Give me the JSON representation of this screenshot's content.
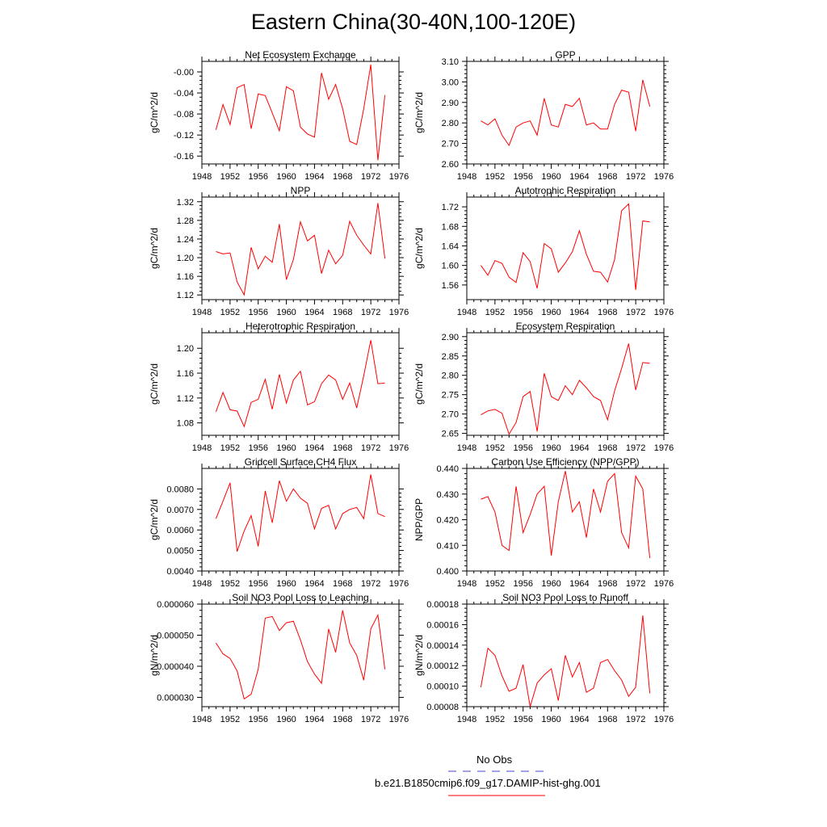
{
  "title": "Eastern China(30-40N,100-120E)",
  "colors": {
    "series": "#ff0000",
    "obs": "#4444cc",
    "axis": "#000000"
  },
  "legend": {
    "obs_label": "No Obs",
    "model_label": "b.e21.B1850cmip6.f09_g17.DAMIP-hist-ghg.001"
  },
  "chart_data": [
    {
      "type": "line",
      "title": "Net Ecosystem Exchange",
      "ylabel": "gC/m^2/d",
      "xlabel": "",
      "xlim": [
        1948,
        1976
      ],
      "xticks": [
        1948,
        1952,
        1956,
        1960,
        1964,
        1968,
        1972,
        1976
      ],
      "ylim": [
        -0.175,
        0.02
      ],
      "yticks": [
        -0.16,
        -0.12,
        -0.08,
        -0.04,
        0.0
      ],
      "yticklabels": [
        "-0.16",
        "-0.12",
        "-0.08",
        "-0.04",
        "-0.00"
      ],
      "x": [
        1950,
        1951,
        1952,
        1953,
        1954,
        1955,
        1956,
        1957,
        1958,
        1959,
        1960,
        1961,
        1962,
        1963,
        1964,
        1965,
        1966,
        1967,
        1968,
        1969,
        1970,
        1971,
        1972,
        1973,
        1974
      ],
      "series": [
        {
          "values": [
            -0.11,
            -0.062,
            -0.1,
            -0.03,
            -0.024,
            -0.108,
            -0.042,
            -0.045,
            -0.078,
            -0.112,
            -0.028,
            -0.036,
            -0.105,
            -0.118,
            -0.124,
            -0.002,
            -0.052,
            -0.024,
            -0.07,
            -0.132,
            -0.138,
            -0.07,
            0.014,
            -0.168,
            -0.044
          ]
        }
      ]
    },
    {
      "type": "line",
      "title": "GPP",
      "ylabel": "gC/m^2/d",
      "xlabel": "",
      "xlim": [
        1948,
        1976
      ],
      "xticks": [
        1948,
        1952,
        1956,
        1960,
        1964,
        1968,
        1972,
        1976
      ],
      "ylim": [
        2.6,
        3.1
      ],
      "yticks": [
        2.6,
        2.7,
        2.8,
        2.9,
        3.0,
        3.1
      ],
      "yticklabels": [
        "2.60",
        "2.70",
        "2.80",
        "2.90",
        "3.00",
        "3.10"
      ],
      "x": [
        1950,
        1951,
        1952,
        1953,
        1954,
        1955,
        1956,
        1957,
        1958,
        1959,
        1960,
        1961,
        1962,
        1963,
        1964,
        1965,
        1966,
        1967,
        1968,
        1969,
        1970,
        1971,
        1972,
        1973,
        1974
      ],
      "series": [
        {
          "values": [
            2.81,
            2.79,
            2.82,
            2.74,
            2.69,
            2.78,
            2.8,
            2.81,
            2.74,
            2.92,
            2.79,
            2.78,
            2.89,
            2.88,
            2.92,
            2.79,
            2.8,
            2.77,
            2.77,
            2.89,
            2.96,
            2.95,
            2.76,
            3.01,
            2.88
          ]
        }
      ]
    },
    {
      "type": "line",
      "title": "NPP",
      "ylabel": "gC/m^2/d",
      "xlabel": "",
      "xlim": [
        1948,
        1976
      ],
      "xticks": [
        1948,
        1952,
        1956,
        1960,
        1964,
        1968,
        1972,
        1976
      ],
      "ylim": [
        1.11,
        1.33
      ],
      "yticks": [
        1.12,
        1.16,
        1.2,
        1.24,
        1.28,
        1.32
      ],
      "yticklabels": [
        "1.12",
        "1.16",
        "1.20",
        "1.24",
        "1.28",
        "1.32"
      ],
      "x": [
        1950,
        1951,
        1952,
        1953,
        1954,
        1955,
        1956,
        1957,
        1958,
        1959,
        1960,
        1961,
        1962,
        1963,
        1964,
        1965,
        1966,
        1967,
        1968,
        1969,
        1970,
        1971,
        1972,
        1973,
        1974
      ],
      "series": [
        {
          "values": [
            1.213,
            1.208,
            1.21,
            1.148,
            1.12,
            1.222,
            1.176,
            1.203,
            1.19,
            1.272,
            1.153,
            1.196,
            1.277,
            1.236,
            1.248,
            1.166,
            1.216,
            1.187,
            1.205,
            1.278,
            1.248,
            1.227,
            1.208,
            1.317,
            1.198
          ]
        }
      ]
    },
    {
      "type": "line",
      "title": "Autotrophic Respiration",
      "ylabel": "gC/m^2/d",
      "xlabel": "",
      "xlim": [
        1948,
        1976
      ],
      "xticks": [
        1948,
        1952,
        1956,
        1960,
        1964,
        1968,
        1972,
        1976
      ],
      "ylim": [
        1.53,
        1.74
      ],
      "yticks": [
        1.56,
        1.6,
        1.64,
        1.68,
        1.72
      ],
      "yticklabels": [
        "1.56",
        "1.60",
        "1.64",
        "1.68",
        "1.72"
      ],
      "x": [
        1950,
        1951,
        1952,
        1953,
        1954,
        1955,
        1956,
        1957,
        1958,
        1959,
        1960,
        1961,
        1962,
        1963,
        1964,
        1965,
        1966,
        1967,
        1968,
        1969,
        1970,
        1971,
        1972,
        1973,
        1974
      ],
      "series": [
        {
          "values": [
            1.6,
            1.58,
            1.61,
            1.604,
            1.576,
            1.565,
            1.626,
            1.608,
            1.553,
            1.645,
            1.634,
            1.586,
            1.605,
            1.628,
            1.671,
            1.623,
            1.588,
            1.586,
            1.566,
            1.612,
            1.712,
            1.726,
            1.55,
            1.691,
            1.689
          ]
        }
      ]
    },
    {
      "type": "line",
      "title": "Heterotrophic Respiration",
      "ylabel": "gC/m^2/d",
      "xlabel": "",
      "xlim": [
        1948,
        1976
      ],
      "xticks": [
        1948,
        1952,
        1956,
        1960,
        1964,
        1968,
        1972,
        1976
      ],
      "ylim": [
        1.06,
        1.225
      ],
      "yticks": [
        1.08,
        1.12,
        1.16,
        1.2
      ],
      "yticklabels": [
        "1.08",
        "1.12",
        "1.16",
        "1.20"
      ],
      "x": [
        1950,
        1951,
        1952,
        1953,
        1954,
        1955,
        1956,
        1957,
        1958,
        1959,
        1960,
        1961,
        1962,
        1963,
        1964,
        1965,
        1966,
        1967,
        1968,
        1969,
        1970,
        1971,
        1972,
        1973,
        1974
      ],
      "series": [
        {
          "values": [
            1.098,
            1.129,
            1.101,
            1.099,
            1.074,
            1.113,
            1.118,
            1.15,
            1.102,
            1.158,
            1.112,
            1.149,
            1.163,
            1.109,
            1.114,
            1.143,
            1.157,
            1.149,
            1.118,
            1.144,
            1.104,
            1.156,
            1.213,
            1.143,
            1.144
          ]
        }
      ]
    },
    {
      "type": "line",
      "title": "Ecosystem Respiration",
      "ylabel": "gC/m^2/d",
      "xlabel": "",
      "xlim": [
        1948,
        1976
      ],
      "xticks": [
        1948,
        1952,
        1956,
        1960,
        1964,
        1968,
        1972,
        1976
      ],
      "ylim": [
        2.645,
        2.91
      ],
      "yticks": [
        2.65,
        2.7,
        2.75,
        2.8,
        2.85,
        2.9
      ],
      "yticklabels": [
        "2.65",
        "2.70",
        "2.75",
        "2.80",
        "2.85",
        "2.90"
      ],
      "x": [
        1950,
        1951,
        1952,
        1953,
        1954,
        1955,
        1956,
        1957,
        1958,
        1959,
        1960,
        1961,
        1962,
        1963,
        1964,
        1965,
        1966,
        1967,
        1968,
        1969,
        1970,
        1971,
        1972,
        1973,
        1974
      ],
      "series": [
        {
          "values": [
            2.698,
            2.708,
            2.712,
            2.702,
            2.648,
            2.678,
            2.745,
            2.758,
            2.655,
            2.805,
            2.745,
            2.735,
            2.773,
            2.75,
            2.787,
            2.768,
            2.745,
            2.735,
            2.685,
            2.76,
            2.818,
            2.882,
            2.762,
            2.833,
            2.831
          ]
        }
      ]
    },
    {
      "type": "line",
      "title": "Gridcell Surface CH4 Flux",
      "ylabel": "gC/m^2/d",
      "xlabel": "",
      "xlim": [
        1948,
        1976
      ],
      "xticks": [
        1948,
        1952,
        1956,
        1960,
        1964,
        1968,
        1972,
        1976
      ],
      "ylim": [
        0.004,
        0.009
      ],
      "yticks": [
        0.004,
        0.005,
        0.006,
        0.007,
        0.008
      ],
      "yticklabels": [
        "0.0040",
        "0.0050",
        "0.0060",
        "0.0070",
        "0.0080"
      ],
      "x": [
        1950,
        1951,
        1952,
        1953,
        1954,
        1955,
        1956,
        1957,
        1958,
        1959,
        1960,
        1961,
        1962,
        1963,
        1964,
        1965,
        1966,
        1967,
        1968,
        1969,
        1970,
        1971,
        1972,
        1973,
        1974
      ],
      "series": [
        {
          "values": [
            0.00655,
            0.0074,
            0.0083,
            0.00495,
            0.00595,
            0.0067,
            0.0052,
            0.0079,
            0.00635,
            0.0084,
            0.0074,
            0.008,
            0.00755,
            0.0073,
            0.00605,
            0.00705,
            0.0072,
            0.00605,
            0.0068,
            0.007,
            0.0071,
            0.00655,
            0.0087,
            0.0068,
            0.00665
          ]
        }
      ]
    },
    {
      "type": "line",
      "title": "Carbon Use Efficiency (NPP/GPP)",
      "ylabel": "NPP/GPP",
      "xlabel": "",
      "xlim": [
        1948,
        1976
      ],
      "xticks": [
        1948,
        1952,
        1956,
        1960,
        1964,
        1968,
        1972,
        1976
      ],
      "ylim": [
        0.4,
        0.44
      ],
      "yticks": [
        0.4,
        0.41,
        0.42,
        0.43,
        0.44
      ],
      "yticklabels": [
        "0.400",
        "0.410",
        "0.420",
        "0.430",
        "0.440"
      ],
      "x": [
        1950,
        1951,
        1952,
        1953,
        1954,
        1955,
        1956,
        1957,
        1958,
        1959,
        1960,
        1961,
        1962,
        1963,
        1964,
        1965,
        1966,
        1967,
        1968,
        1969,
        1970,
        1971,
        1972,
        1973,
        1974
      ],
      "series": [
        {
          "values": [
            0.428,
            0.429,
            0.423,
            0.41,
            0.408,
            0.433,
            0.415,
            0.422,
            0.43,
            0.433,
            0.406,
            0.427,
            0.439,
            0.423,
            0.427,
            0.413,
            0.432,
            0.423,
            0.435,
            0.438,
            0.415,
            0.409,
            0.437,
            0.432,
            0.405
          ]
        }
      ]
    },
    {
      "type": "line",
      "title": "Soil NO3 Pool Loss to Leaching",
      "ylabel": "gN/m^2/d",
      "xlabel": "",
      "xlim": [
        1948,
        1976
      ],
      "xticks": [
        1948,
        1952,
        1956,
        1960,
        1964,
        1968,
        1972,
        1976
      ],
      "ylim": [
        2.7e-05,
        6e-05
      ],
      "yticks": [
        3e-05,
        4e-05,
        5e-05,
        6e-05
      ],
      "yticklabels": [
        "0.000030",
        "0.000040",
        "0.000050",
        "0.000060"
      ],
      "x": [
        1950,
        1951,
        1952,
        1953,
        1954,
        1955,
        1956,
        1957,
        1958,
        1959,
        1960,
        1961,
        1962,
        1963,
        1964,
        1965,
        1966,
        1967,
        1968,
        1969,
        1970,
        1971,
        1972,
        1973,
        1974
      ],
      "series": [
        {
          "values": [
            4.75e-05,
            4.4e-05,
            4.25e-05,
            3.85e-05,
            2.95e-05,
            3.1e-05,
            3.9e-05,
            5.55e-05,
            5.6e-05,
            5.15e-05,
            5.4e-05,
            5.45e-05,
            4.85e-05,
            4.15e-05,
            3.75e-05,
            3.45e-05,
            5.2e-05,
            4.45e-05,
            5.8e-05,
            4.75e-05,
            4.35e-05,
            3.55e-05,
            5.2e-05,
            5.65e-05,
            3.9e-05
          ]
        }
      ]
    },
    {
      "type": "line",
      "title": "Soil NO3 Pool Loss to Runoff",
      "ylabel": "gN/m^2/d",
      "xlabel": "",
      "xlim": [
        1948,
        1976
      ],
      "xticks": [
        1948,
        1952,
        1956,
        1960,
        1964,
        1968,
        1972,
        1976
      ],
      "ylim": [
        8e-05,
        0.00018
      ],
      "yticks": [
        8e-05,
        0.0001,
        0.00012,
        0.00014,
        0.00016,
        0.00018
      ],
      "yticklabels": [
        "0.00008",
        "0.00010",
        "0.00012",
        "0.00014",
        "0.00016",
        "0.00018"
      ],
      "x": [
        1950,
        1951,
        1952,
        1953,
        1954,
        1955,
        1956,
        1957,
        1958,
        1959,
        1960,
        1961,
        1962,
        1963,
        1964,
        1965,
        1966,
        1967,
        1968,
        1969,
        1970,
        1971,
        1972,
        1973,
        1974
      ],
      "series": [
        {
          "values": [
            9.9e-05,
            0.000137,
            0.00013,
            0.00011,
            9.5e-05,
            9.8e-05,
            0.000121,
            8e-05,
            0.000103,
            0.000111,
            0.000117,
            8.6e-05,
            0.00013,
            0.000109,
            0.000123,
            9.4e-05,
            9.8e-05,
            0.000123,
            0.000126,
            0.000115,
            0.000106,
            9e-05,
            9.9e-05,
            0.000169,
            9.3e-05
          ]
        }
      ]
    }
  ]
}
